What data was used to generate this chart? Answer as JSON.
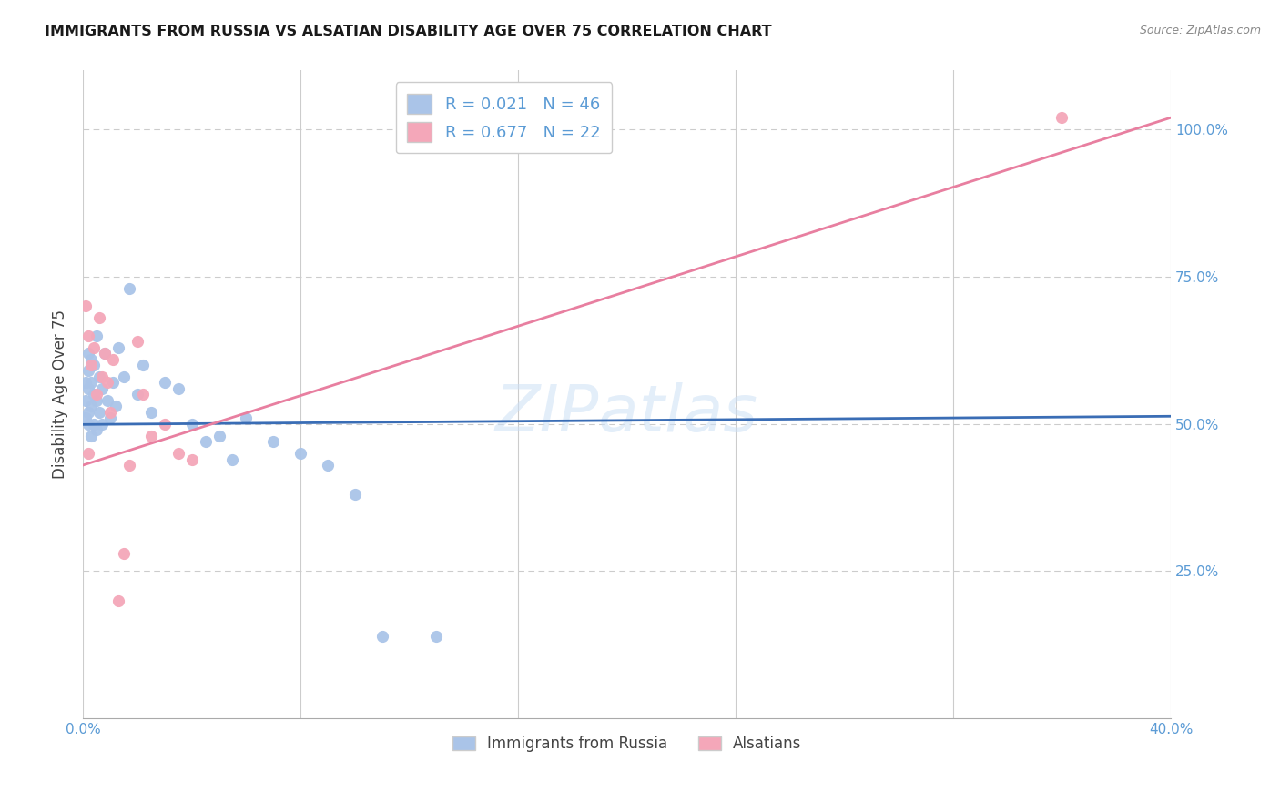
{
  "title": "IMMIGRANTS FROM RUSSIA VS ALSATIAN DISABILITY AGE OVER 75 CORRELATION CHART",
  "source": "Source: ZipAtlas.com",
  "ylabel": "Disability Age Over 75",
  "xlim": [
    0.0,
    0.4
  ],
  "ylim": [
    0.0,
    1.1
  ],
  "yticks": [
    0.25,
    0.5,
    0.75,
    1.0
  ],
  "ytick_labels": [
    "25.0%",
    "50.0%",
    "75.0%",
    "100.0%"
  ],
  "xticks": [
    0.0,
    0.08,
    0.16,
    0.24,
    0.32,
    0.4
  ],
  "xtick_labels": [
    "0.0%",
    "",
    "",
    "",
    "",
    "40.0%"
  ],
  "legend_entries": [
    {
      "label_r": "R = 0.021",
      "label_n": "N = 46",
      "color": "#aac4e8"
    },
    {
      "label_r": "R = 0.677",
      "label_n": "N = 22",
      "color": "#f4a7b9"
    }
  ],
  "blue_scatter_x": [
    0.001,
    0.001,
    0.001,
    0.002,
    0.002,
    0.002,
    0.002,
    0.002,
    0.003,
    0.003,
    0.003,
    0.003,
    0.004,
    0.004,
    0.004,
    0.005,
    0.005,
    0.005,
    0.006,
    0.006,
    0.007,
    0.007,
    0.008,
    0.009,
    0.01,
    0.011,
    0.012,
    0.013,
    0.015,
    0.017,
    0.02,
    0.022,
    0.025,
    0.03,
    0.035,
    0.04,
    0.045,
    0.05,
    0.055,
    0.06,
    0.07,
    0.08,
    0.09,
    0.1,
    0.11,
    0.13
  ],
  "blue_scatter_y": [
    0.51,
    0.54,
    0.57,
    0.5,
    0.52,
    0.56,
    0.59,
    0.62,
    0.48,
    0.53,
    0.57,
    0.61,
    0.5,
    0.55,
    0.6,
    0.49,
    0.54,
    0.65,
    0.52,
    0.58,
    0.5,
    0.56,
    0.62,
    0.54,
    0.51,
    0.57,
    0.53,
    0.63,
    0.58,
    0.73,
    0.55,
    0.6,
    0.52,
    0.57,
    0.56,
    0.5,
    0.47,
    0.48,
    0.44,
    0.51,
    0.47,
    0.45,
    0.43,
    0.38,
    0.14,
    0.14
  ],
  "pink_scatter_x": [
    0.001,
    0.002,
    0.002,
    0.003,
    0.004,
    0.005,
    0.006,
    0.007,
    0.008,
    0.009,
    0.01,
    0.011,
    0.013,
    0.015,
    0.017,
    0.02,
    0.022,
    0.025,
    0.03,
    0.035,
    0.04,
    0.36
  ],
  "pink_scatter_y": [
    0.7,
    0.45,
    0.65,
    0.6,
    0.63,
    0.55,
    0.68,
    0.58,
    0.62,
    0.57,
    0.52,
    0.61,
    0.2,
    0.28,
    0.43,
    0.64,
    0.55,
    0.48,
    0.5,
    0.45,
    0.44,
    1.02
  ],
  "blue_line_x": [
    0.0,
    0.4
  ],
  "blue_line_y": [
    0.499,
    0.513
  ],
  "pink_line_x": [
    0.0,
    0.4
  ],
  "pink_line_y": [
    0.43,
    1.02
  ],
  "blue_dot_color": "#aac4e8",
  "pink_dot_color": "#f4a7b9",
  "blue_line_color": "#3a6db5",
  "pink_line_color": "#e87fa0",
  "grid_color": "#cccccc",
  "right_axis_color": "#5b9bd5",
  "background_color": "#ffffff",
  "watermark": "ZIPatlas"
}
